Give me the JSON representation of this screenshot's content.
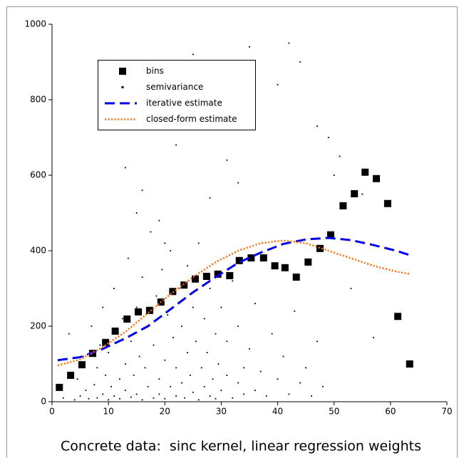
{
  "chart_data": {
    "type": "scatter",
    "title": "Concrete data:  sinc kernel, linear regression weights",
    "xlim": [
      0,
      70
    ],
    "ylim": [
      0,
      1000
    ],
    "xticks": [
      0,
      10,
      20,
      30,
      40,
      50,
      60,
      70
    ],
    "yticks": [
      0,
      200,
      400,
      600,
      800,
      1000
    ],
    "grid": false,
    "legend": "upper left",
    "series": [
      {
        "name": "bins",
        "color": "#000000",
        "marker": "square",
        "x": [
          1.3,
          3.3,
          5.3,
          7.2,
          9.5,
          11.2,
          13.3,
          15.3,
          17.3,
          19.3,
          21.4,
          23.4,
          25.4,
          27.4,
          29.4,
          31.5,
          33.2,
          35.3,
          37.5,
          39.5,
          41.3,
          43.3,
          45.4,
          47.5,
          49.4,
          51.6,
          53.6,
          55.5,
          57.5,
          59.5,
          61.3,
          63.4
        ],
        "values": [
          38,
          70,
          98,
          128,
          157,
          187,
          219,
          238,
          242,
          264,
          292,
          309,
          325,
          332,
          338,
          334,
          374,
          381,
          381,
          360,
          355,
          330,
          370,
          406,
          442,
          519,
          551,
          608,
          591,
          525,
          226,
          100
        ]
      },
      {
        "name": "semivariance",
        "color": "#000000",
        "marker": "dot",
        "x": [
          2,
          3,
          4,
          4.5,
          5,
          5.5,
          6,
          6.5,
          7,
          7.5,
          8,
          8,
          8.5,
          9,
          9,
          9.5,
          10,
          10,
          10.5,
          11,
          11,
          11.5,
          12,
          12,
          12.5,
          13,
          13,
          13.5,
          14,
          14,
          14.5,
          15,
          15,
          15.5,
          16,
          16,
          16.5,
          17,
          17,
          17.5,
          18,
          18,
          18.5,
          19,
          19,
          19.5,
          20,
          20,
          20.5,
          21,
          21,
          21.5,
          22,
          22,
          22.5,
          23,
          23,
          23.5,
          24,
          24,
          24.5,
          25,
          25,
          25.5,
          26,
          26,
          26.5,
          27,
          27,
          27.5,
          28,
          28,
          28.5,
          29,
          29,
          29.5,
          30,
          30,
          31,
          31,
          32,
          32,
          33,
          33,
          34,
          34,
          35,
          36,
          36,
          37,
          38,
          39,
          40,
          41,
          42,
          43,
          44,
          45,
          46,
          47,
          48,
          49,
          50,
          51,
          53,
          55,
          57,
          13,
          16,
          19,
          22,
          25,
          28,
          31,
          35,
          40,
          44,
          47,
          15,
          20,
          26,
          33,
          42
        ],
        "values": [
          10,
          180,
          5,
          60,
          15,
          120,
          30,
          8,
          200,
          45,
          10,
          90,
          150,
          20,
          250,
          70,
          5,
          130,
          40,
          300,
          15,
          180,
          60,
          8,
          220,
          100,
          30,
          380,
          12,
          160,
          70,
          250,
          20,
          120,
          5,
          330,
          90,
          40,
          200,
          450,
          10,
          150,
          280,
          60,
          20,
          350,
          110,
          8,
          230,
          40,
          400,
          170,
          15,
          90,
          300,
          50,
          200,
          10,
          130,
          360,
          70,
          25,
          250,
          160,
          5,
          420,
          90,
          40,
          220,
          130,
          15,
          300,
          60,
          180,
          8,
          100,
          30,
          250,
          70,
          160,
          10,
          320,
          50,
          200,
          90,
          20,
          140,
          30,
          260,
          80,
          15,
          180,
          60,
          120,
          20,
          240,
          50,
          90,
          15,
          160,
          40,
          700,
          600,
          650,
          300,
          550,
          170,
          620,
          560,
          480,
          680,
          920,
          540,
          640,
          940,
          840,
          900,
          730,
          500,
          420,
          760,
          580,
          950
        ]
      },
      {
        "name": "iterative estimate",
        "color": "#0000ee",
        "line": "dashed",
        "x": [
          1,
          5,
          9,
          13,
          17,
          21,
          25,
          29,
          33,
          37,
          41,
          45,
          49,
          53,
          57,
          61,
          63.5
        ],
        "values": [
          110,
          118,
          140,
          168,
          200,
          245,
          290,
          330,
          368,
          395,
          418,
          430,
          434,
          428,
          415,
          400,
          388
        ]
      },
      {
        "name": "closed-form estimate",
        "color": "#ff6a00",
        "line": "dotted",
        "x": [
          1,
          5,
          9,
          13,
          17,
          21,
          25,
          29,
          33,
          37,
          41,
          45,
          49,
          53,
          57,
          61,
          63.5
        ],
        "values": [
          96,
          112,
          145,
          185,
          235,
          285,
          330,
          370,
          400,
          420,
          427,
          420,
          400,
          380,
          360,
          345,
          338
        ]
      }
    ]
  }
}
